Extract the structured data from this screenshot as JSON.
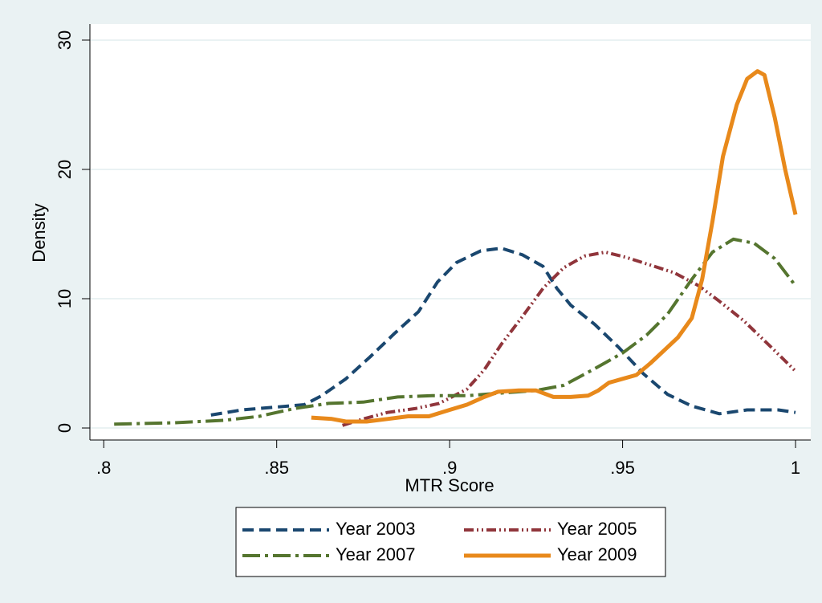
{
  "chart_data": {
    "type": "line",
    "xlabel": "MTR Score",
    "ylabel": "Density",
    "xlim": [
      0.796,
      1.0044
    ],
    "ylim": [
      -0.93,
      31.24
    ],
    "xticks": [
      {
        "value": 0.8,
        "label": ".8"
      },
      {
        "value": 0.85,
        "label": ".85"
      },
      {
        "value": 0.9,
        "label": ".9"
      },
      {
        "value": 0.95,
        "label": ".95"
      },
      1
    ],
    "yticks": [
      0,
      10,
      20,
      30
    ],
    "grid": true,
    "series": [
      {
        "name": "Year 2003",
        "color": "#1a476f",
        "x": [
          0.831,
          0.84,
          0.849,
          0.858,
          0.863,
          0.87,
          0.877,
          0.884,
          0.891,
          0.8965,
          0.902,
          0.909,
          0.915,
          0.921,
          0.927,
          0.931,
          0.935,
          0.942,
          0.949,
          0.956,
          0.963,
          0.97,
          0.978,
          0.986,
          0.995,
          1.0
        ],
        "values": [
          1.0,
          1.4,
          1.6,
          1.8,
          2.5,
          3.8,
          5.5,
          7.3,
          9.0,
          11.3,
          12.8,
          13.7,
          13.9,
          13.4,
          12.5,
          10.8,
          9.5,
          8.0,
          6.2,
          4.2,
          2.6,
          1.7,
          1.1,
          1.4,
          1.4,
          1.2
        ]
      },
      {
        "name": "Year 2005",
        "color": "#90353b",
        "x": [
          0.869,
          0.875,
          0.882,
          0.89,
          0.897,
          0.905,
          0.91,
          0.915,
          0.921,
          0.927,
          0.933,
          0.939,
          0.945,
          0.951,
          0.958,
          0.965,
          0.972,
          0.978,
          0.985,
          0.992,
          1.0
        ],
        "values": [
          0.2,
          0.7,
          1.2,
          1.5,
          1.9,
          3.0,
          4.5,
          6.5,
          8.6,
          10.8,
          12.4,
          13.3,
          13.6,
          13.2,
          12.6,
          12.0,
          11.0,
          9.8,
          8.3,
          6.5,
          4.4
        ]
      },
      {
        "name": "Year 2007",
        "color": "#55752f",
        "x": [
          0.803,
          0.82,
          0.835,
          0.845,
          0.855,
          0.865,
          0.875,
          0.885,
          0.895,
          0.905,
          0.915,
          0.925,
          0.933,
          0.942,
          0.95,
          0.957,
          0.963,
          0.97,
          0.976,
          0.982,
          0.988,
          0.994,
          1.0
        ],
        "values": [
          0.3,
          0.4,
          0.6,
          0.9,
          1.5,
          1.9,
          2.0,
          2.4,
          2.5,
          2.5,
          2.7,
          2.9,
          3.3,
          4.6,
          5.8,
          7.2,
          8.8,
          11.5,
          13.6,
          14.6,
          14.3,
          13.1,
          11.0
        ]
      },
      {
        "name": "Year 2009",
        "color": "#e8891b",
        "x": [
          0.86,
          0.866,
          0.87,
          0.876,
          0.882,
          0.888,
          0.894,
          0.9,
          0.905,
          0.91,
          0.914,
          0.92,
          0.925,
          0.93,
          0.935,
          0.94,
          0.943,
          0.946,
          0.95,
          0.954,
          0.958,
          0.962,
          0.966,
          0.97,
          0.973,
          0.976,
          0.979,
          0.983,
          0.986,
          0.989,
          0.991,
          0.994,
          0.997,
          1.0
        ],
        "values": [
          0.8,
          0.7,
          0.5,
          0.5,
          0.7,
          0.9,
          0.9,
          1.4,
          1.8,
          2.4,
          2.8,
          2.9,
          2.9,
          2.4,
          2.4,
          2.5,
          2.9,
          3.5,
          3.8,
          4.1,
          5.0,
          6.0,
          7.0,
          8.5,
          11.5,
          16.0,
          21.0,
          25.0,
          27.0,
          27.6,
          27.3,
          24.0,
          20.0,
          16.5
        ]
      }
    ]
  }
}
